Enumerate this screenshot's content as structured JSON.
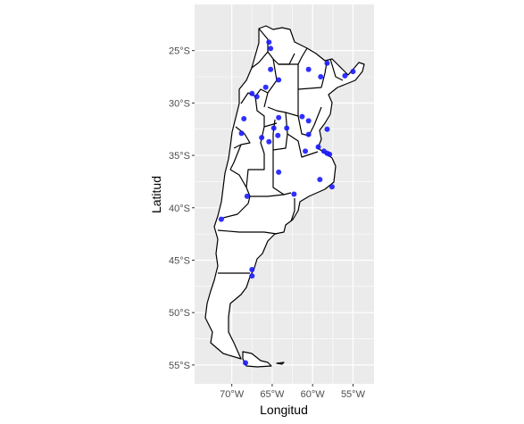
{
  "chart_data": {
    "type": "scatter",
    "xlabel": "Longitud",
    "ylabel": "Latitud",
    "x_ticks": [
      {
        "value": -70,
        "label": "70°W"
      },
      {
        "value": -65,
        "label": "65°W"
      },
      {
        "value": -60,
        "label": "60°W"
      },
      {
        "value": -55,
        "label": "55°W"
      }
    ],
    "y_ticks": [
      {
        "value": -25,
        "label": "25°S"
      },
      {
        "value": -30,
        "label": "30°S"
      },
      {
        "value": -35,
        "label": "35°S"
      },
      {
        "value": -40,
        "label": "40°S"
      },
      {
        "value": -45,
        "label": "45°S"
      },
      {
        "value": -50,
        "label": "50°S"
      },
      {
        "value": -55,
        "label": "55°S"
      }
    ],
    "xlim": [
      -74.6,
      -52.4
    ],
    "ylim": [
      -56.8,
      -20.6
    ],
    "grid": true,
    "panel_color": "#ebebeb",
    "grid_color": "#ffffff",
    "point_color": "#1a1aff",
    "map_fill": "#ffffff",
    "map_stroke": "#000000",
    "points": [
      {
        "x": -65.4,
        "y": -24.2
      },
      {
        "x": -65.2,
        "y": -24.8
      },
      {
        "x": -65.2,
        "y": -26.8
      },
      {
        "x": -64.2,
        "y": -27.8
      },
      {
        "x": -65.8,
        "y": -28.5
      },
      {
        "x": -60.5,
        "y": -26.8
      },
      {
        "x": -58.2,
        "y": -26.2
      },
      {
        "x": -59.0,
        "y": -27.5
      },
      {
        "x": -56.0,
        "y": -27.4
      },
      {
        "x": -55.0,
        "y": -27.0
      },
      {
        "x": -67.5,
        "y": -29.1
      },
      {
        "x": -66.9,
        "y": -29.4
      },
      {
        "x": -68.5,
        "y": -31.5
      },
      {
        "x": -68.8,
        "y": -32.9
      },
      {
        "x": -64.2,
        "y": -31.4
      },
      {
        "x": -64.8,
        "y": -32.4
      },
      {
        "x": -63.2,
        "y": -32.4
      },
      {
        "x": -61.3,
        "y": -31.3
      },
      {
        "x": -60.5,
        "y": -31.7
      },
      {
        "x": -58.2,
        "y": -32.5
      },
      {
        "x": -60.5,
        "y": -33.0
      },
      {
        "x": -66.3,
        "y": -33.3
      },
      {
        "x": -65.4,
        "y": -33.7
      },
      {
        "x": -64.3,
        "y": -33.1
      },
      {
        "x": -59.3,
        "y": -34.2
      },
      {
        "x": -58.6,
        "y": -34.6
      },
      {
        "x": -58.2,
        "y": -34.8
      },
      {
        "x": -57.9,
        "y": -34.9
      },
      {
        "x": -60.9,
        "y": -34.6
      },
      {
        "x": -64.2,
        "y": -36.6
      },
      {
        "x": -59.1,
        "y": -37.3
      },
      {
        "x": -57.6,
        "y": -38.0
      },
      {
        "x": -62.3,
        "y": -38.7
      },
      {
        "x": -68.1,
        "y": -38.9
      },
      {
        "x": -71.3,
        "y": -41.1
      },
      {
        "x": -67.5,
        "y": -45.9
      },
      {
        "x": -67.5,
        "y": -46.5
      },
      {
        "x": -68.3,
        "y": -54.8
      }
    ]
  }
}
